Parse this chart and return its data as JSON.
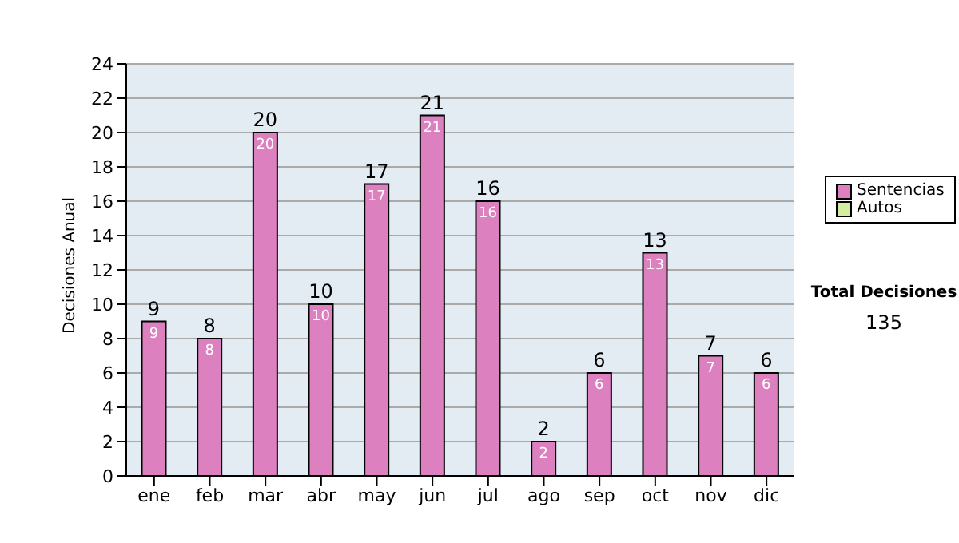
{
  "chart_data": {
    "type": "bar",
    "ylabel": "Decisiones Anual",
    "categories": [
      "ene",
      "feb",
      "mar",
      "abr",
      "may",
      "jun",
      "jul",
      "ago",
      "sep",
      "oct",
      "nov",
      "dic"
    ],
    "series": [
      {
        "name": "Sentencias",
        "color": "#dd80c0",
        "values": [
          9,
          8,
          20,
          10,
          17,
          21,
          16,
          2,
          6,
          13,
          7,
          6
        ],
        "value_labels": [
          "9",
          "8",
          "20",
          "10",
          "17",
          "21",
          "16",
          "2",
          "6",
          "13",
          "7",
          "6"
        ]
      },
      {
        "name": "Autos",
        "color": "#d4eea0",
        "values": [
          0,
          0,
          0,
          0,
          0,
          0,
          0,
          0,
          0,
          0,
          0,
          0
        ]
      }
    ],
    "stacked": true,
    "totals": [
      "9",
      "8",
      "20",
      "10",
      "17",
      "21",
      "16",
      "2",
      "6",
      "13",
      "7",
      "6"
    ],
    "ylim": [
      0,
      24
    ],
    "yticks": [
      0,
      2,
      4,
      6,
      8,
      10,
      12,
      14,
      16,
      18,
      20,
      22,
      24
    ],
    "grid": "y",
    "legend": "right",
    "annotations": [
      "Total Decisiones",
      "135"
    ]
  }
}
